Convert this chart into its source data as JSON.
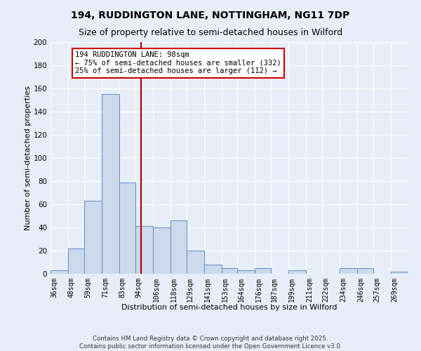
{
  "title1": "194, RUDDINGTON LANE, NOTTINGHAM, NG11 7DP",
  "title2": "Size of property relative to semi-detached houses in Wilford",
  "xlabel": "Distribution of semi-detached houses by size in Wilford",
  "ylabel": "Number of semi-detached properties",
  "bins": [
    36,
    48,
    59,
    71,
    83,
    94,
    106,
    118,
    129,
    141,
    153,
    164,
    176,
    187,
    199,
    211,
    222,
    234,
    246,
    257,
    269,
    281
  ],
  "counts": [
    3,
    22,
    63,
    155,
    79,
    41,
    40,
    46,
    20,
    8,
    5,
    3,
    5,
    0,
    3,
    0,
    0,
    5,
    5,
    0,
    2
  ],
  "bar_color": "#ccdaeb",
  "bar_edge_color": "#5b8dc9",
  "property_size": 98,
  "vline_color": "#aa0000",
  "annotation_text": "194 RUDDINGTON LANE: 98sqm\n← 75% of semi-detached houses are smaller (332)\n25% of semi-detached houses are larger (112) →",
  "annotation_box_color": "#ffffff",
  "annotation_box_edge": "#cc0000",
  "ylim": [
    0,
    200
  ],
  "yticks": [
    0,
    20,
    40,
    60,
    80,
    100,
    120,
    140,
    160,
    180,
    200
  ],
  "tick_labels": [
    "36sqm",
    "48sqm",
    "59sqm",
    "71sqm",
    "83sqm",
    "94sqm",
    "106sqm",
    "118sqm",
    "129sqm",
    "141sqm",
    "153sqm",
    "164sqm",
    "176sqm",
    "187sqm",
    "199sqm",
    "211sqm",
    "222sqm",
    "234sqm",
    "246sqm",
    "257sqm",
    "269sqm"
  ],
  "footnote1": "Contains HM Land Registry data © Crown copyright and database right 2025.",
  "footnote2": "Contains public sector information licensed under the Open Government Licence v3.0.",
  "bg_color": "#e8eef8",
  "grid_color": "#d0d8e8",
  "title_fontsize": 10,
  "subtitle_fontsize": 9,
  "axis_label_fontsize": 8,
  "tick_fontsize": 7,
  "annotation_fontsize": 7.5
}
